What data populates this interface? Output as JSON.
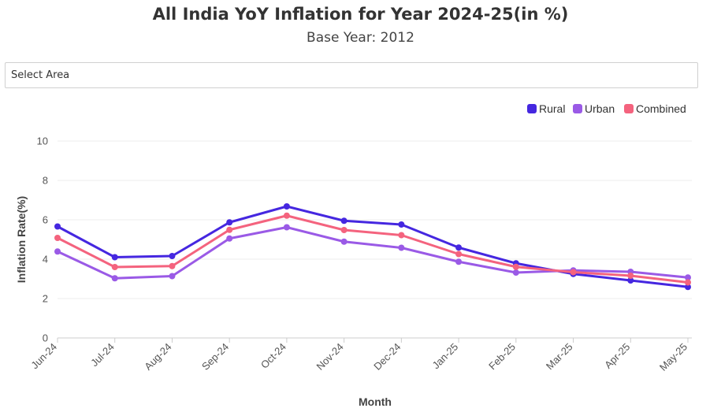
{
  "page": {
    "title": "All India YoY Inflation for Year 2024-25(in %)",
    "subtitle": "Base Year: 2012",
    "select_label": "Select Area"
  },
  "chart_data": {
    "type": "line",
    "title": "All India YoY Inflation for Year 2024-25(in %)",
    "subtitle": "Base Year: 2012",
    "xlabel": "Month",
    "ylabel": "Inflation Rate(%)",
    "ylim": [
      0,
      10
    ],
    "yticks": [
      0,
      2,
      4,
      6,
      8,
      10
    ],
    "grid": true,
    "legend_position": "top-right",
    "categories": [
      "Jun-24",
      "Jul-24",
      "Aug-24",
      "Sep-24",
      "Oct-24",
      "Nov-24",
      "Dec-24",
      "Jan-25",
      "Feb-25",
      "Mar-25",
      "Apr-25",
      "May-25"
    ],
    "series": [
      {
        "name": "Rural",
        "color": "#4527e0",
        "values": [
          5.66,
          4.1,
          4.16,
          5.87,
          6.68,
          5.95,
          5.76,
          4.59,
          3.79,
          3.25,
          2.92,
          2.59
        ]
      },
      {
        "name": "Urban",
        "color": "#9a5ae6",
        "values": [
          4.39,
          3.03,
          3.14,
          5.05,
          5.62,
          4.89,
          4.58,
          3.87,
          3.32,
          3.43,
          3.36,
          3.07
        ]
      },
      {
        "name": "Combined",
        "color": "#f4637e",
        "values": [
          5.08,
          3.6,
          3.65,
          5.49,
          6.21,
          5.48,
          5.22,
          4.26,
          3.61,
          3.34,
          3.16,
          2.82
        ]
      }
    ]
  }
}
